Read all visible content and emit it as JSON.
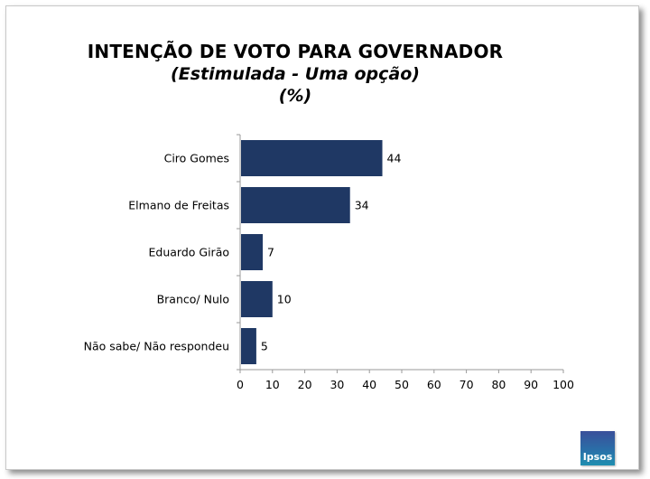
{
  "title": {
    "main": "INTENÇÃO DE VOTO PARA GOVERNADOR",
    "sub": "(Estimulada - Uma opção)",
    "unit": "(%)"
  },
  "logo": {
    "text": "Ipsos",
    "color": "#2a6fa8"
  },
  "chart_data": {
    "type": "bar",
    "orientation": "horizontal",
    "categories": [
      "Ciro Gomes",
      "Elmano de Freitas",
      "Eduardo Girão",
      "Branco/ Nulo",
      "Não sabe/ Não respondeu"
    ],
    "values": [
      44,
      34,
      7,
      10,
      5
    ],
    "data_labels": [
      "44",
      "34",
      "7",
      "10",
      "5"
    ],
    "xlim": [
      0,
      100
    ],
    "xticks": [
      "0",
      "10",
      "20",
      "30",
      "40",
      "50",
      "60",
      "70",
      "80",
      "90",
      "100"
    ],
    "bar_color": "#1f3864",
    "grid": false,
    "legend": "none"
  }
}
